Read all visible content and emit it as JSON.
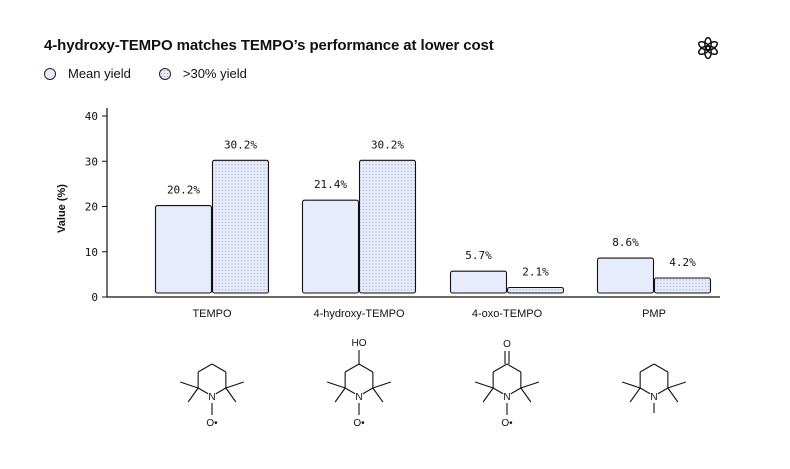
{
  "header": {
    "title": "4-hydroxy-TEMPO matches TEMPO’s performance at lower cost"
  },
  "logo_icon": "openai-logo-icon",
  "legend": [
    {
      "label": "Mean yield",
      "pattern": "solid"
    },
    {
      "label": ">30% yield",
      "pattern": "dotted"
    }
  ],
  "colors": {
    "bar_fill": "#e6ecfb",
    "bar_stroke": "#111111",
    "dot": "#9aa6c4"
  },
  "chart_data": {
    "type": "bar",
    "categories": [
      "TEMPO",
      "4-hydroxy-TEMPO",
      "4-oxo-TEMPO",
      "PMP"
    ],
    "series": [
      {
        "name": "Mean yield",
        "values": [
          20.2,
          21.4,
          5.7,
          8.6
        ]
      },
      {
        "name": ">30% yield",
        "values": [
          30.2,
          30.2,
          2.1,
          4.2
        ]
      }
    ],
    "data_labels": [
      [
        "20.2%",
        "21.4%",
        "5.7%",
        "8.6%"
      ],
      [
        "30.2%",
        "30.2%",
        "2.1%",
        "4.2%"
      ]
    ],
    "ylabel": "Value (%)",
    "ylim": [
      0,
      40
    ],
    "yticks": [
      0,
      10,
      20,
      30,
      40
    ],
    "grid": false,
    "legend_position": "top-left"
  },
  "structures": [
    {
      "substituent": "",
      "nitrogen": "N",
      "oxygen": "O•"
    },
    {
      "substituent": "HO",
      "nitrogen": "N",
      "oxygen": "O•"
    },
    {
      "substituent": "O",
      "nitrogen": "N",
      "oxygen": "O•"
    },
    {
      "substituent": "",
      "nitrogen": "N",
      "oxygen": ""
    }
  ]
}
